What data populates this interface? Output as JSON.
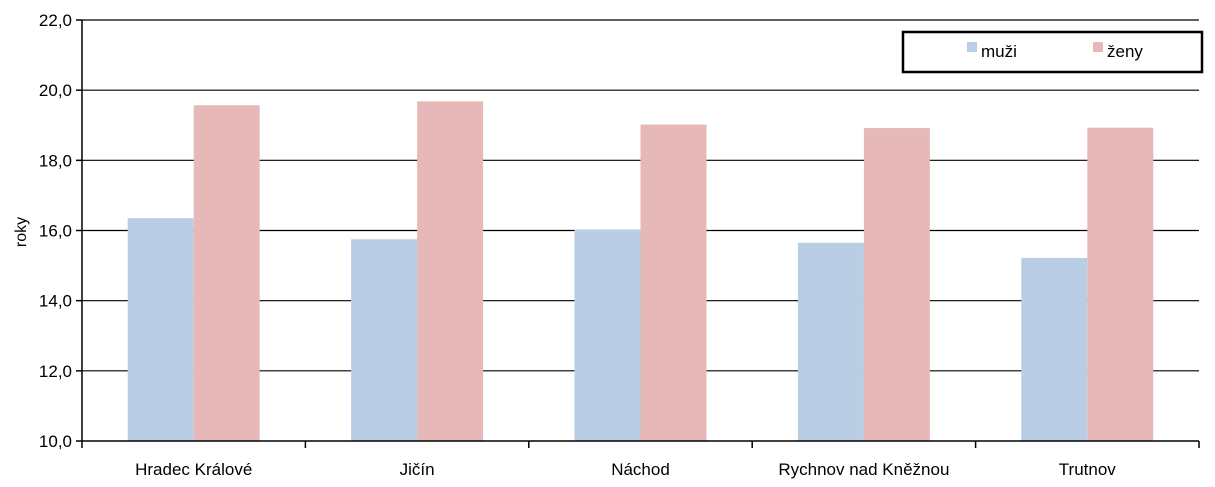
{
  "chart_data": {
    "type": "bar",
    "title": "",
    "xlabel": "",
    "ylabel": "roky",
    "ylim": [
      10,
      22
    ],
    "yticks": [
      "10,0",
      "12,0",
      "14,0",
      "16,0",
      "18,0",
      "20,0",
      "22,0"
    ],
    "ytick_values": [
      10,
      12,
      14,
      16,
      18,
      20,
      22
    ],
    "categories": [
      "Hradec Králové",
      "Jičín",
      "Náchod",
      "Rychnov nad Kněžnou",
      "Trutnov"
    ],
    "series": [
      {
        "name": "muži",
        "color": "#b9cde5",
        "values": [
          16.35,
          15.75,
          16.02,
          15.65,
          15.22
        ]
      },
      {
        "name": "ženy",
        "color": "#e6b9b8",
        "values": [
          19.57,
          19.68,
          19.02,
          18.92,
          18.93
        ]
      }
    ],
    "grid": true,
    "legend_position": "top-right"
  }
}
